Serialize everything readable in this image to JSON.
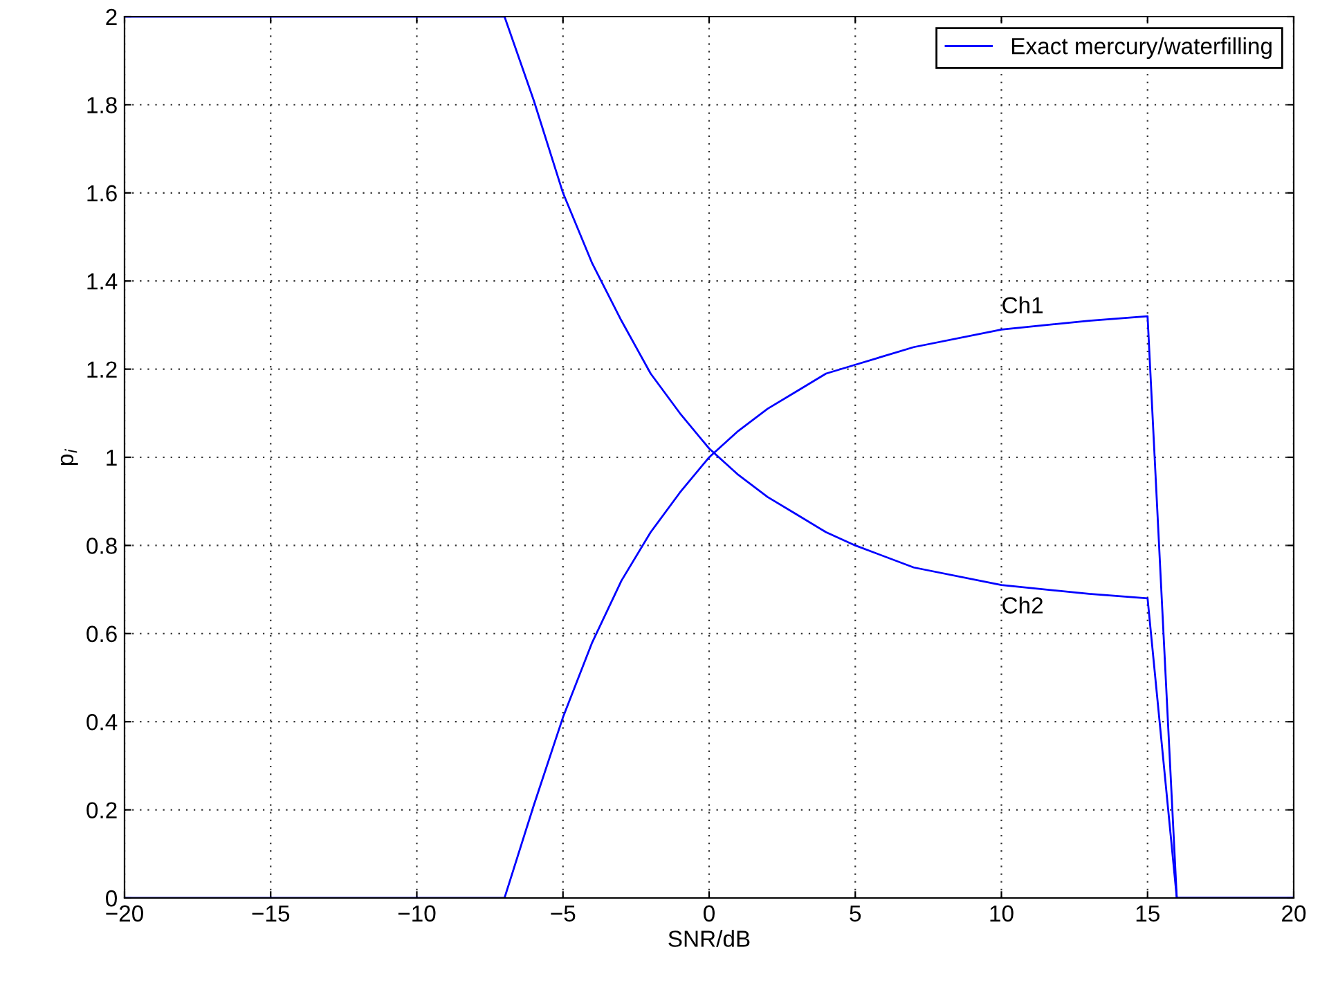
{
  "chart_data": {
    "type": "line",
    "xlabel": "SNR/dB",
    "ylabel": "p$_{i}$",
    "xlim": [
      -20,
      20
    ],
    "xticks": [
      {
        "value": -20,
        "label": "−20"
      },
      {
        "value": -15,
        "label": "−15"
      },
      {
        "value": -10,
        "label": "−10"
      },
      {
        "value": -5,
        "label": "−5"
      },
      0,
      5,
      10,
      15,
      20
    ],
    "ylim": [
      0,
      2
    ],
    "yticks": [
      0,
      0.2,
      0.4,
      0.6,
      0.8,
      1,
      1.2,
      1.4,
      1.6,
      1.8,
      2
    ],
    "grid": true,
    "legend": "top right",
    "line_style": "solid",
    "marker": "none",
    "series": [
      {
        "name": "Exact mercury/waterfilling",
        "color": "#0000ff",
        "x": [
          -20,
          -7,
          -6,
          -5,
          -4,
          -3,
          -2,
          -1,
          0,
          1,
          2,
          3,
          4,
          5,
          7,
          10,
          13,
          15,
          16,
          20
        ],
        "values": [
          0,
          0,
          0.21,
          0.41,
          0.58,
          0.72,
          0.83,
          0.92,
          1.0,
          1.06,
          1.11,
          1.15,
          1.19,
          1.21,
          1.25,
          1.29,
          1.31,
          1.32,
          0,
          0
        ]
      },
      {
        "color": "#0000ff",
        "x": [
          -20,
          -7,
          -6,
          -5,
          -4,
          -3,
          -2,
          -1,
          0,
          1,
          2,
          3,
          4,
          5,
          7,
          10,
          13,
          15,
          16,
          20
        ],
        "values": [
          2,
          2,
          1.81,
          1.6,
          1.44,
          1.31,
          1.19,
          1.1,
          1.02,
          0.96,
          0.91,
          0.87,
          0.83,
          0.8,
          0.75,
          0.71,
          0.69,
          0.68,
          0,
          0
        ]
      }
    ],
    "annotations": [
      "Ch1",
      "Ch2"
    ]
  }
}
